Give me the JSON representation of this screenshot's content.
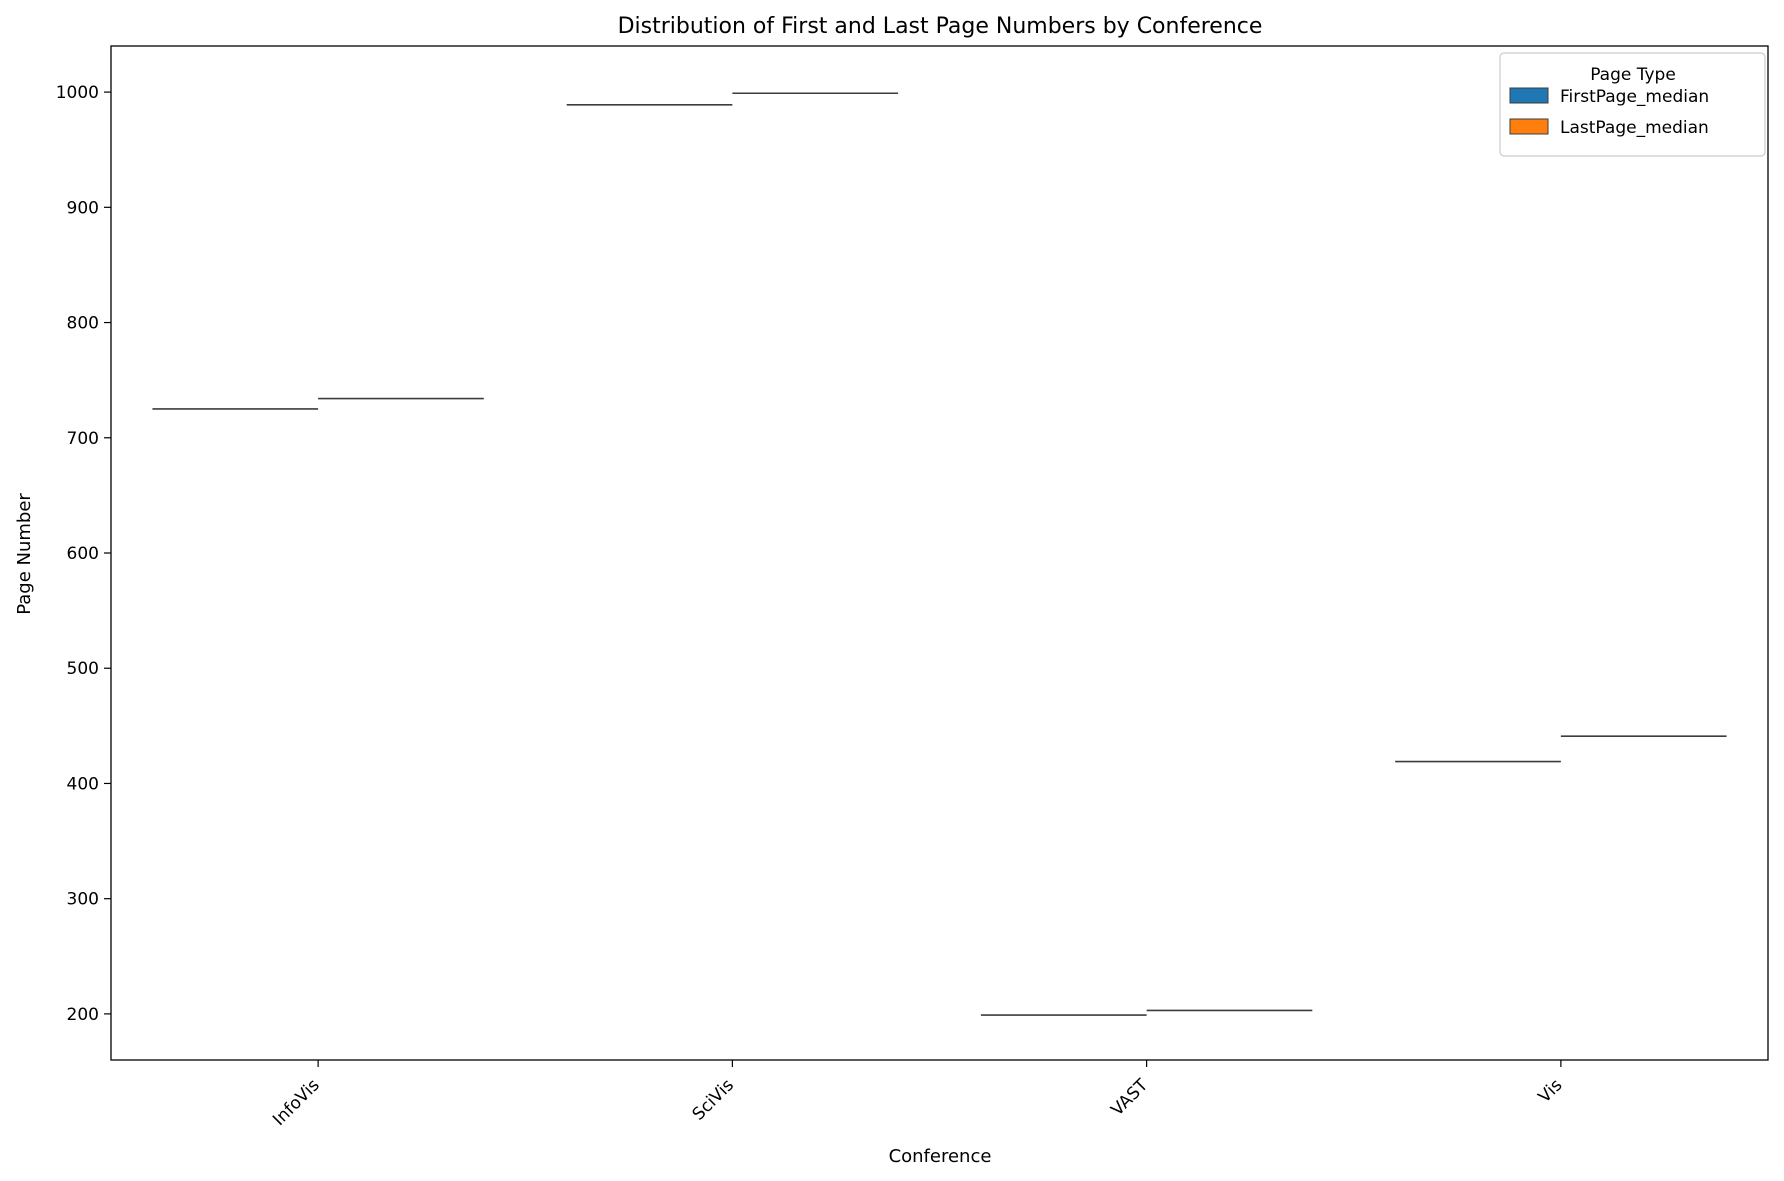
{
  "chart_data": {
    "type": "box",
    "title": "Distribution of First and Last Page Numbers by Conference",
    "xlabel": "Conference",
    "ylabel": "Page Number",
    "categories": [
      "InfoVis",
      "SciVis",
      "VAST",
      "Vis"
    ],
    "series": [
      {
        "name": "FirstPage_median",
        "color": "#1f77b4",
        "values": [
          725,
          989,
          199,
          419
        ]
      },
      {
        "name": "LastPage_median",
        "color": "#ff7f0e",
        "values": [
          734,
          999,
          203,
          441
        ]
      }
    ],
    "ylim": [
      160,
      1040
    ],
    "yticks": [
      200,
      300,
      400,
      500,
      600,
      700,
      800,
      900,
      1000
    ],
    "legend": {
      "title": "Page Type",
      "placement": "top-right"
    },
    "grid": false
  }
}
